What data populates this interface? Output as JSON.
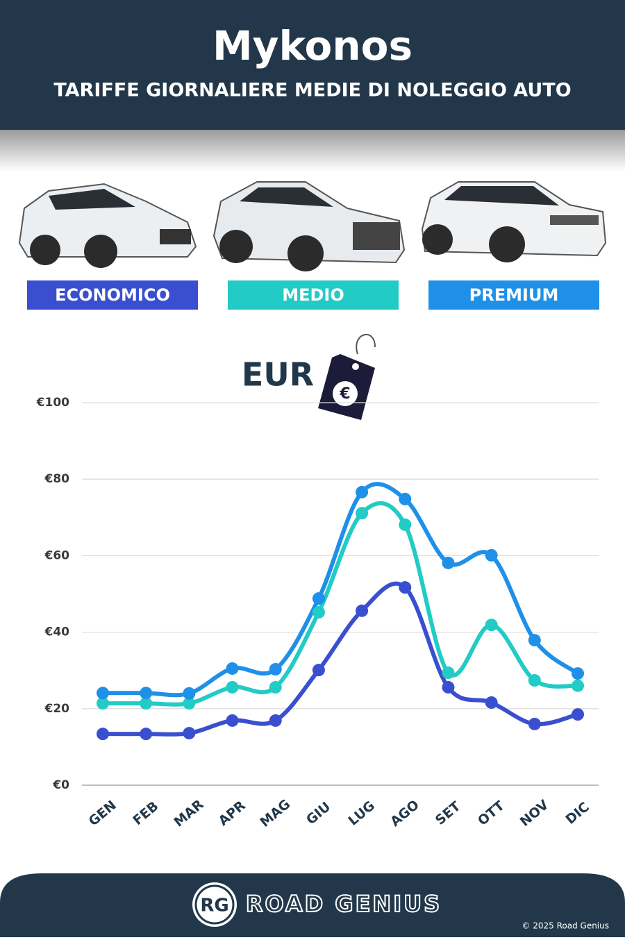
{
  "chart_data": {
    "type": "line",
    "title": "Mykonos",
    "subtitle": "TARIFFE GIORNALIERE MEDIE DI NOLEGGIO AUTO",
    "unit_label": "EUR",
    "categories": [
      "GEN",
      "FEB",
      "MAR",
      "APR",
      "MAG",
      "GIU",
      "LUG",
      "AGO",
      "SET",
      "OTT",
      "NOV",
      "DIC"
    ],
    "series": [
      {
        "name": "ECONOMICO",
        "color": "#3a4fd0",
        "values": [
          13.4,
          13.4,
          13.6,
          16.9,
          16.9,
          30.1,
          45.6,
          51.7,
          25.6,
          21.6,
          16.0,
          18.5
        ]
      },
      {
        "name": "MEDIO",
        "color": "#22cbc6",
        "values": [
          21.4,
          21.4,
          21.4,
          25.6,
          25.6,
          45.2,
          71.1,
          68.1,
          29.4,
          41.9,
          27.4,
          26.0
        ]
      },
      {
        "name": "PREMIUM",
        "color": "#1f90e8",
        "values": [
          24.1,
          24.1,
          24.0,
          30.5,
          30.3,
          48.8,
          76.6,
          74.8,
          58.1,
          60.1,
          37.9,
          29.2
        ]
      }
    ],
    "ylim": [
      0,
      100
    ],
    "yticks": [
      {
        "value": 0,
        "label": "€0"
      },
      {
        "value": 20,
        "label": "€20"
      },
      {
        "value": 40,
        "label": "€40"
      },
      {
        "value": 60,
        "label": "€60"
      },
      {
        "value": 80,
        "label": "€80"
      },
      {
        "value": 100,
        "label": "€100"
      }
    ],
    "grid": true,
    "smooth": true
  },
  "footer": {
    "logo": "RG",
    "brand": "ROAD GENIUS",
    "copyright": "© 2025 Road Genius"
  }
}
